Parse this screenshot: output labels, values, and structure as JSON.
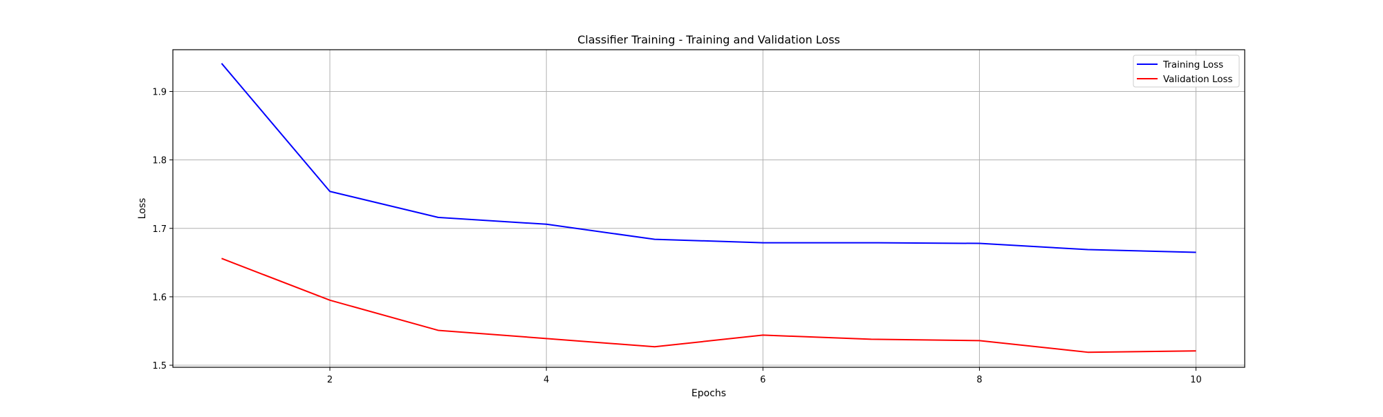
{
  "chart_data": {
    "type": "line",
    "title": "Classifier Training - Training and Validation Loss",
    "xlabel": "Epochs",
    "ylabel": "Loss",
    "x": [
      1,
      2,
      3,
      4,
      5,
      6,
      7,
      8,
      9,
      10
    ],
    "xlim": [
      0.55,
      10.45
    ],
    "ylim": [
      1.497,
      1.961
    ],
    "xticks": [
      2,
      4,
      6,
      8,
      10
    ],
    "yticks": [
      1.5,
      1.6,
      1.7,
      1.8,
      1.9
    ],
    "xtick_labels": [
      "2",
      "4",
      "6",
      "8",
      "10"
    ],
    "ytick_labels": [
      "1.5",
      "1.6",
      "1.7",
      "1.8",
      "1.9"
    ],
    "grid": true,
    "legend_position": "top-right",
    "series": [
      {
        "name": "Training Loss",
        "color": "#0000ff",
        "values": [
          1.941,
          1.754,
          1.716,
          1.706,
          1.684,
          1.679,
          1.679,
          1.678,
          1.669,
          1.665
        ]
      },
      {
        "name": "Validation Loss",
        "color": "#ff0000",
        "values": [
          1.656,
          1.595,
          1.551,
          1.539,
          1.527,
          1.544,
          1.538,
          1.536,
          1.519,
          1.521
        ]
      }
    ]
  }
}
